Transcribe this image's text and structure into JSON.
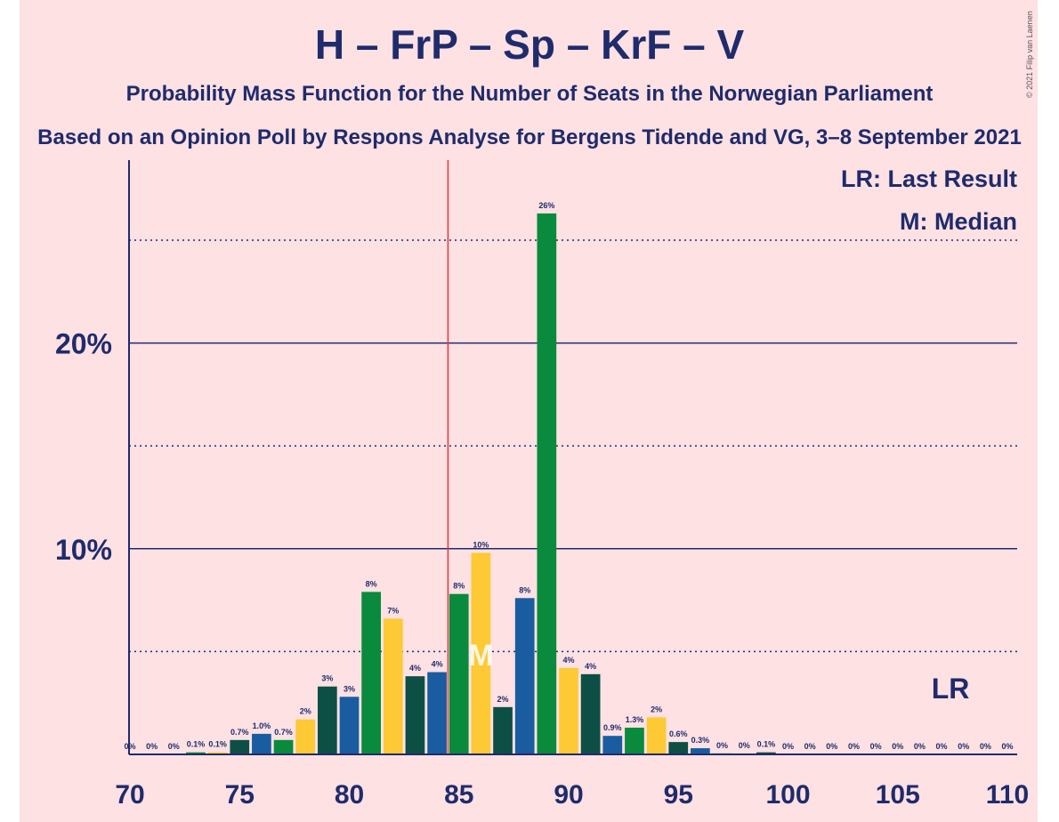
{
  "title": "H – FrP – Sp – KrF – V",
  "subtitle": "Probability Mass Function for the Number of Seats in the Norwegian Parliament",
  "subtitle2": "Based on an Opinion Poll by Respons Analyse for Bergens Tidende and VG, 3–8 September 2021",
  "copyright": "© 2021 Filip van Laenen",
  "legend": {
    "lr": "LR: Last Result",
    "m": "M: Median"
  },
  "markers": {
    "lr_text": "LR",
    "m_text": "M"
  },
  "colors": {
    "background": "#fde1e3",
    "blue": "#1a5ca0",
    "green": "#0a8a3c",
    "yellow": "#fdc935",
    "darkgreen": "#0d4f45",
    "axis": "#1f2b6b",
    "majority_line": "#e8333b"
  },
  "chart_data": {
    "type": "bar",
    "title": "H – FrP – Sp – KrF – V",
    "xlim": [
      70,
      110
    ],
    "ylim": [
      0,
      28
    ],
    "xticks": [
      70,
      75,
      80,
      85,
      90,
      95,
      100,
      105,
      110
    ],
    "ytick_labels": [
      {
        "value": 10,
        "label": "10%"
      },
      {
        "value": 20,
        "label": "20%"
      }
    ],
    "dotted_gridlines": [
      5,
      15,
      25
    ],
    "solid_gridlines": [
      10,
      20
    ],
    "majority_line": 84.5,
    "median": 86,
    "last_result": 107,
    "x": [
      70,
      71,
      72,
      73,
      74,
      75,
      76,
      77,
      78,
      79,
      80,
      81,
      82,
      83,
      84,
      85,
      86,
      87,
      88,
      89,
      90,
      91,
      92,
      93,
      94,
      95,
      96,
      97,
      98,
      99,
      100,
      101,
      102,
      103,
      104,
      105,
      106,
      107,
      108,
      109,
      110
    ],
    "values": [
      0,
      0,
      0,
      0.1,
      0.1,
      0.7,
      1.0,
      0.7,
      1.7,
      3.3,
      2.8,
      7.9,
      6.6,
      3.8,
      4.0,
      7.8,
      9.8,
      2.3,
      7.6,
      26.3,
      4.2,
      3.9,
      0.9,
      1.3,
      1.8,
      0.6,
      0.3,
      0.05,
      0.05,
      0.1,
      0,
      0,
      0,
      0,
      0,
      0,
      0,
      0,
      0,
      0,
      0
    ],
    "labels": [
      "0%",
      "0%",
      "0%",
      "0.1%",
      "0.1%",
      "0.7%",
      "1.0%",
      "0.7%",
      "2%",
      "3%",
      "3%",
      "8%",
      "7%",
      "4%",
      "4%",
      "8%",
      "10%",
      "2%",
      "8%",
      "26%",
      "4%",
      "4%",
      "0.9%",
      "1.3%",
      "2%",
      "0.6%",
      "0.3%",
      "0%",
      "0%",
      "0.1%",
      "0%",
      "0%",
      "0%",
      "0%",
      "0%",
      "0%",
      "0%",
      "0%",
      "0%",
      "0%",
      "0%"
    ],
    "bar_colors": [
      "blue",
      "green",
      "yellow",
      "darkgreen"
    ]
  }
}
